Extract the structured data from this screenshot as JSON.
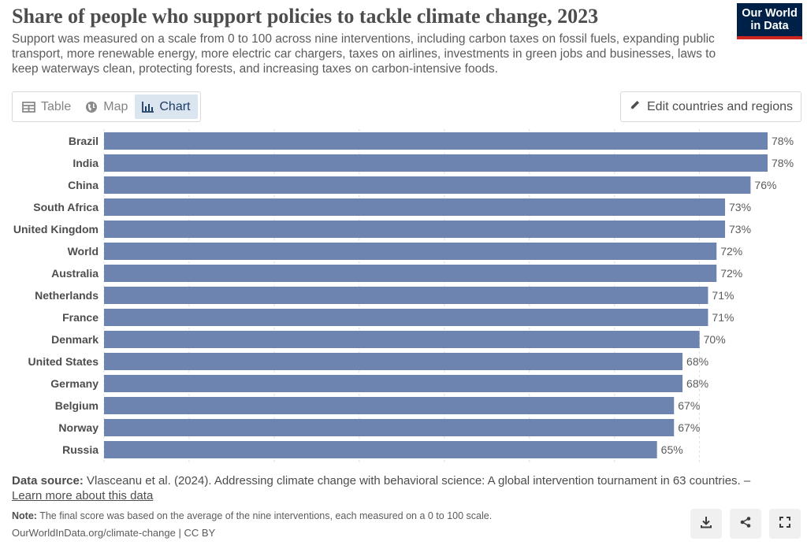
{
  "header": {
    "title": "Share of people who support policies to tackle climate change, 2023",
    "subtitle": "Support was measured on a scale from 0 to 100 across nine interventions, including carbon taxes on fossil fuels, expanding public transport, more renewable energy, more electric car chargers, taxes on airlines, investments in green jobs and businesses, laws to keep waterways clean, protecting forests, and increasing taxes on carbon-intensive foods.",
    "logo_line1": "Our World",
    "logo_line2": "in Data"
  },
  "tabs": [
    {
      "label": "Table",
      "icon": "table-icon",
      "active": false
    },
    {
      "label": "Map",
      "icon": "globe-icon",
      "active": false
    },
    {
      "label": "Chart",
      "icon": "chart-icon",
      "active": true
    }
  ],
  "edit_button": {
    "label": "Edit countries and regions",
    "icon": "pencil-icon"
  },
  "chart_data": {
    "type": "bar",
    "orientation": "horizontal",
    "categories": [
      "Brazil",
      "India",
      "China",
      "South Africa",
      "United Kingdom",
      "World",
      "Australia",
      "Netherlands",
      "France",
      "Denmark",
      "United States",
      "Germany",
      "Belgium",
      "Norway",
      "Russia"
    ],
    "values": [
      78,
      78,
      76,
      73,
      73,
      72,
      72,
      71,
      71,
      70,
      68,
      68,
      67,
      67,
      65
    ],
    "value_labels": [
      "78%",
      "78%",
      "76%",
      "73%",
      "73%",
      "72%",
      "72%",
      "71%",
      "71%",
      "70%",
      "68%",
      "68%",
      "67%",
      "67%",
      "65%"
    ],
    "bar_color": "#6d84b0",
    "xlim": [
      0,
      78
    ],
    "grid": "vertical",
    "legend": "none"
  },
  "footer": {
    "source_label": "Data source:",
    "source_text": "Vlasceanu et al. (2024). Addressing climate change with behavioral science: A global intervention tournament in 63 countries. –",
    "learn_more": "Learn more about this data",
    "note_label": "Note:",
    "note_text": "The final score was based on the average of the nine interventions, each measured on a 0 to 100 scale.",
    "credit": "OurWorldInData.org/climate-change | CC BY"
  },
  "actions": [
    {
      "icon": "download-icon"
    },
    {
      "icon": "share-icon"
    },
    {
      "icon": "fullscreen-icon"
    }
  ]
}
